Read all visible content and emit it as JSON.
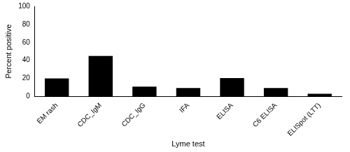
{
  "chart_data": {
    "type": "bar",
    "x_label": "Lyme test",
    "y_label": "Percent positive",
    "categories": [
      "EM rash",
      "CDC_IgM",
      "CDC_IgG",
      "IFA",
      "ELISA",
      "C6 ELISA",
      "ELISpot (LTT)"
    ],
    "values": [
      20,
      45,
      11,
      9.5,
      20.5,
      9.5,
      3
    ],
    "color": "#000000",
    "ylim": [
      0,
      100
    ],
    "yticks": [
      0,
      20,
      40,
      60,
      80,
      100
    ],
    "grid": false
  }
}
